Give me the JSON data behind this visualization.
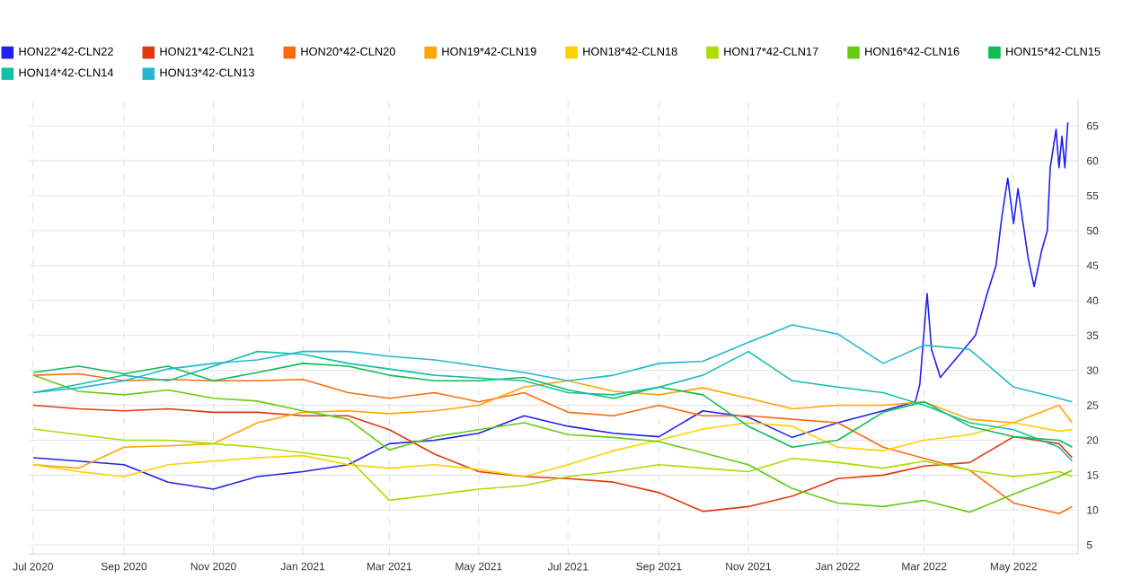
{
  "chart_data": {
    "type": "line",
    "grid": true,
    "legend": "top",
    "line_style": "solid",
    "x": [
      "2020-07-01",
      "2020-08-01",
      "2020-09-01",
      "2020-10-01",
      "2020-11-01",
      "2020-12-01",
      "2021-01-01",
      "2021-02-01",
      "2021-03-01",
      "2021-04-01",
      "2021-05-01",
      "2021-06-01",
      "2021-07-01",
      "2021-08-01",
      "2021-09-01",
      "2021-10-01",
      "2021-11-01",
      "2021-12-01",
      "2022-01-01",
      "2022-02-01",
      "2022-03-01",
      "2022-04-01",
      "2022-05-01",
      "2022-06-01",
      "2022-06-10"
    ],
    "xlim": [
      "2020-06-28",
      "2022-06-14"
    ],
    "xticks": [
      {
        "value": "2020-07-01",
        "label": "Jul 2020"
      },
      {
        "value": "2020-09-01",
        "label": "Sep 2020"
      },
      {
        "value": "2020-11-01",
        "label": "Nov 2020"
      },
      {
        "value": "2021-01-01",
        "label": "Jan 2021"
      },
      {
        "value": "2021-03-01",
        "label": "Mar 2021"
      },
      {
        "value": "2021-05-01",
        "label": "May 2021"
      },
      {
        "value": "2021-07-01",
        "label": "Jul 2021"
      },
      {
        "value": "2021-09-01",
        "label": "Sep 2021"
      },
      {
        "value": "2021-11-01",
        "label": "Nov 2021"
      },
      {
        "value": "2022-01-01",
        "label": "Jan 2022"
      },
      {
        "value": "2022-03-01",
        "label": "Mar 2022"
      },
      {
        "value": "2022-05-01",
        "label": "May 2022"
      }
    ],
    "ylim": [
      3.7,
      68.8
    ],
    "yticks": [
      5,
      10,
      15,
      20,
      25,
      30,
      35,
      40,
      45,
      50,
      55,
      60,
      65
    ],
    "series": [
      {
        "name": "HON22*42-CLN22",
        "color": "#2020ee",
        "x": [
          "2020-07-01",
          "2020-08-01",
          "2020-09-01",
          "2020-10-01",
          "2020-11-01",
          "2020-12-01",
          "2021-01-01",
          "2021-02-01",
          "2021-03-01",
          "2021-04-01",
          "2021-05-01",
          "2021-06-01",
          "2021-07-01",
          "2021-08-01",
          "2021-09-01",
          "2021-10-01",
          "2021-11-01",
          "2021-12-01",
          "2022-01-01",
          "2022-02-01",
          "2022-02-23",
          "2022-02-26",
          "2022-03-03",
          "2022-03-06",
          "2022-03-12",
          "2022-03-20",
          "2022-03-28",
          "2022-04-05",
          "2022-04-13",
          "2022-04-19",
          "2022-04-23",
          "2022-04-27",
          "2022-05-01",
          "2022-05-04",
          "2022-05-11",
          "2022-05-15",
          "2022-05-20",
          "2022-05-24",
          "2022-05-26",
          "2022-05-30",
          "2022-06-01",
          "2022-06-03",
          "2022-06-05",
          "2022-06-07"
        ],
        "values": [
          17.5,
          17,
          16.5,
          14,
          13,
          14.8,
          15.5,
          16.5,
          19.5,
          20,
          21,
          23.5,
          22,
          21,
          20.5,
          24.2,
          23.3,
          20.4,
          22.5,
          24.2,
          25.5,
          28,
          41,
          33,
          29,
          31,
          33,
          35,
          41,
          45,
          52,
          57.5,
          51,
          56,
          46,
          42,
          47,
          50,
          59,
          64.5,
          59,
          63.5,
          59,
          65.5
        ]
      },
      {
        "name": "HON21*42-CLN21",
        "color": "#e03a0e",
        "values": [
          25,
          24.5,
          24.2,
          24.5,
          24,
          24,
          23.5,
          23.5,
          21.5,
          18,
          15.5,
          14.8,
          14.5,
          14,
          12.5,
          9.8,
          10.5,
          12,
          14.5,
          15,
          16.3,
          16.8,
          20.5,
          19.5,
          17.5
        ]
      },
      {
        "name": "HON20*42-CLN20",
        "color": "#ff6a10",
        "values": [
          29.3,
          29.5,
          28.5,
          28.7,
          28.5,
          28.5,
          28.7,
          26.8,
          26,
          26.8,
          25.5,
          26.8,
          24,
          23.5,
          25,
          23.5,
          23.5,
          23,
          22.5,
          19,
          17.4,
          15.7,
          11,
          9.5,
          10.5
        ]
      },
      {
        "name": "HON19*42-CLN19",
        "color": "#ffa500",
        "values": [
          16.5,
          16,
          19,
          19.2,
          19.5,
          22.5,
          24,
          24.2,
          23.8,
          24.2,
          25,
          27.6,
          28.5,
          27,
          26.5,
          27.5,
          26,
          24.5,
          25,
          25,
          25.5,
          23,
          22.5,
          25,
          22.5
        ]
      },
      {
        "name": "HON18*42-CLN18",
        "color": "#ffd000",
        "values": [
          16.5,
          15.5,
          14.8,
          16.5,
          17,
          17.5,
          17.8,
          16.5,
          16,
          16.5,
          15.8,
          14.8,
          16.5,
          18.5,
          20,
          21.6,
          22.5,
          22,
          19,
          18.5,
          20,
          20.8,
          22.5,
          21.3,
          21.5
        ]
      },
      {
        "name": "HON17*42-CLN17",
        "color": "#aadd00",
        "values": [
          21.6,
          20.8,
          20,
          20,
          19.5,
          19,
          18.2,
          17.4,
          11.4,
          12.2,
          13,
          13.5,
          14.8,
          15.5,
          16.5,
          16,
          15.5,
          17.4,
          16.8,
          16,
          17,
          15.7,
          14.8,
          15.5,
          14.8
        ]
      },
      {
        "name": "HON16*42-CLN16",
        "color": "#66cc11",
        "values": [
          29.3,
          27,
          26.5,
          27.2,
          26,
          25.6,
          24.2,
          23,
          18.6,
          20.5,
          21.5,
          22.5,
          20.8,
          20.4,
          19.8,
          18.2,
          16.5,
          13.1,
          11,
          10.5,
          11.4,
          9.7,
          12.3,
          14.8,
          15.7
        ]
      },
      {
        "name": "HON15*42-CLN15",
        "color": "#11bb55",
        "values": [
          29.7,
          30.6,
          29.5,
          30.6,
          28.5,
          29.7,
          31,
          30.6,
          29.3,
          28.5,
          28.5,
          29,
          27.2,
          26,
          27.6,
          26.5,
          22,
          19,
          20,
          24,
          25.5,
          22,
          20.5,
          20,
          19
        ]
      },
      {
        "name": "HON14*42-CLN14",
        "color": "#11c0a8",
        "values": [
          26.8,
          28,
          29.3,
          28.5,
          30.6,
          32.7,
          32.3,
          31,
          30.2,
          29.3,
          28.9,
          28.5,
          26.8,
          26.5,
          27.6,
          29.3,
          32.7,
          28.5,
          27.6,
          26.8,
          25,
          22.5,
          21.5,
          19,
          17
        ]
      },
      {
        "name": "HON13*42-CLN13",
        "color": "#22b8d0",
        "values": [
          26.8,
          27.5,
          28.5,
          30.2,
          31,
          31.5,
          32.7,
          32.7,
          32,
          31.5,
          30.6,
          29.7,
          28.5,
          29.3,
          31,
          31.3,
          34,
          36.5,
          35.2,
          31,
          33.6,
          33,
          27.6,
          26,
          25.5
        ]
      }
    ]
  }
}
